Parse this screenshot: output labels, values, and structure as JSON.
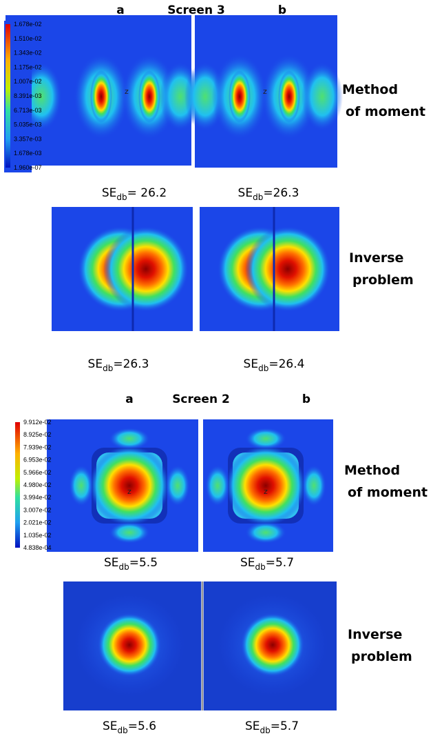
{
  "screen3": {
    "label_a": "a",
    "title": "Screen 3",
    "label_b": "b",
    "marker": "z",
    "colorbar": [
      "1.678e-02",
      "1.510e-02",
      "1.343e-02",
      "1.175e-02",
      "1.007e-02",
      "8.391e-03",
      "6.713e-03",
      "5.035e-03",
      "3.357e-03",
      "1.678e-03",
      "1.960e-07"
    ],
    "mom": [
      "Method",
      "of moment"
    ],
    "inverse": [
      "Inverse",
      "problem"
    ],
    "se": [
      {
        "main": "SE",
        "sub": "db",
        "value": "= 26.2"
      },
      {
        "main": "SE",
        "sub": "db",
        "value": "=26.3"
      },
      {
        "main": "SE",
        "sub": "db",
        "value": "=26.3"
      },
      {
        "main": "SE",
        "sub": "db",
        "value": "=26.4"
      }
    ]
  },
  "screen2": {
    "label_a": "a",
    "title": "Screen 2",
    "label_b": "b",
    "marker": "z",
    "colorbar": [
      "9.912e-02",
      "8.925e-02",
      "7.939e-02",
      "6.953e-02",
      "5.966e-02",
      "4.980e-02",
      "3.994e-02",
      "3.007e-02",
      "2.021e-02",
      "1.035e-02",
      "4.838e-04"
    ],
    "mom": [
      "Method",
      "of moment"
    ],
    "inverse": [
      "Inverse",
      "problem"
    ],
    "se": [
      {
        "main": "SE",
        "sub": "db",
        "value": "=5.5"
      },
      {
        "main": "SE",
        "sub": "db",
        "value": "=5.7"
      },
      {
        "main": "SE",
        "sub": "db",
        "value": "=5.6"
      },
      {
        "main": "SE",
        "sub": "db",
        "value": "=5.7"
      }
    ]
  }
}
